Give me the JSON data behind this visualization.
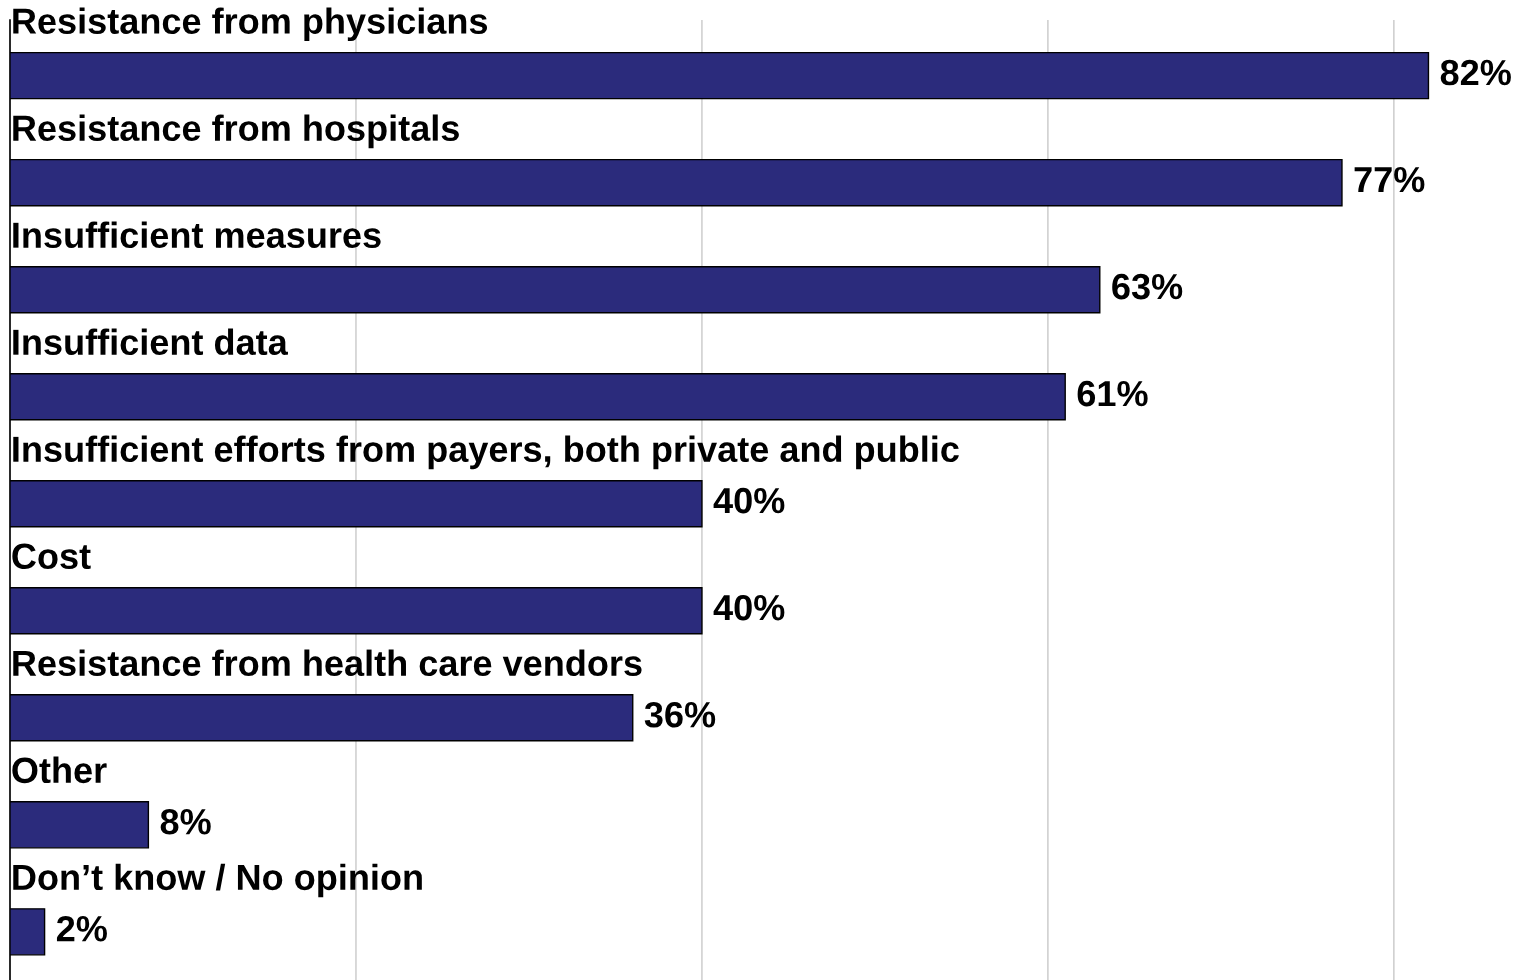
{
  "chart_data": {
    "type": "bar",
    "orientation": "horizontal",
    "categories": [
      "Resistance from physicians",
      "Resistance from hospitals",
      "Insufficient measures",
      "Insufficient data",
      "Insufficient efforts from payers, both private and public",
      "Cost",
      "Resistance from health care vendors",
      "Other",
      "Don’t know / No opinion"
    ],
    "values": [
      82,
      77,
      63,
      61,
      40,
      40,
      36,
      8,
      2
    ],
    "value_labels": [
      "82%",
      "77%",
      "63%",
      "61%",
      "40%",
      "40%",
      "36%",
      "8%",
      "2%"
    ],
    "color": "#2b2b7c",
    "xticks": [
      {
        "value": 20,
        "label": null
      },
      {
        "value": 40,
        "label": null
      },
      {
        "value": 60,
        "label": null
      },
      {
        "value": 80,
        "label": null
      }
    ],
    "grid": "x"
  }
}
